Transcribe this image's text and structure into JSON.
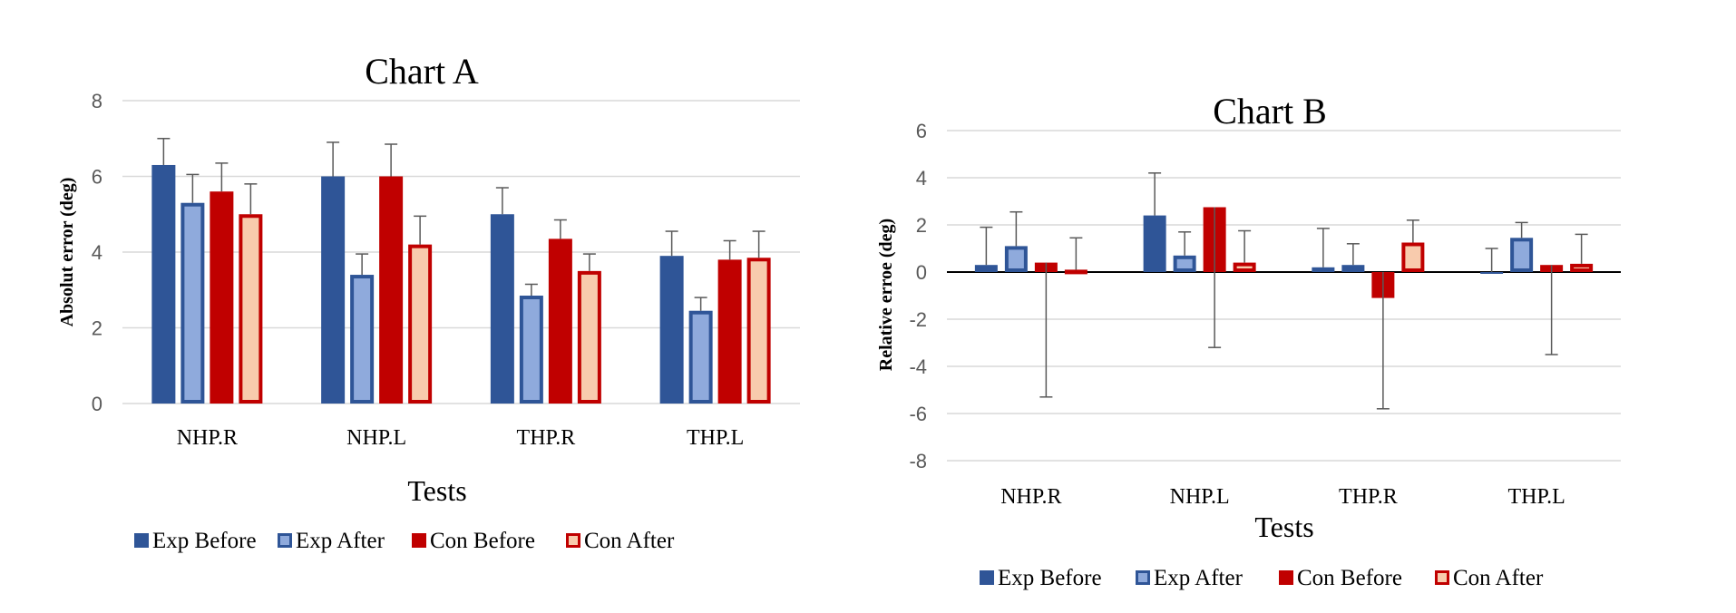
{
  "chart_data": [
    {
      "type": "bar",
      "title": "Chart A",
      "xlabel": "Tests",
      "ylabel": "Absolut error (deg)",
      "ylim": [
        0,
        8
      ],
      "yticks": [
        0,
        2,
        4,
        6,
        8
      ],
      "grid": true,
      "legend_position": "bottom",
      "categories": [
        "NHP.R",
        "NHP.L",
        "THP.R",
        "THP.L"
      ],
      "series": [
        {
          "name": "Exp Before",
          "values": [
            6.3,
            6.0,
            5.0,
            3.9
          ],
          "error_upper": [
            0.7,
            0.9,
            0.7,
            0.65
          ]
        },
        {
          "name": "Exp After",
          "values": [
            5.3,
            3.4,
            2.85,
            2.45
          ],
          "error_upper": [
            0.75,
            0.55,
            0.3,
            0.35
          ]
        },
        {
          "name": "Con Before",
          "values": [
            5.6,
            6.0,
            4.35,
            3.8
          ],
          "error_upper": [
            0.75,
            0.85,
            0.5,
            0.5
          ]
        },
        {
          "name": "Con After",
          "values": [
            5.0,
            4.2,
            3.5,
            3.85
          ],
          "error_upper": [
            0.8,
            0.75,
            0.45,
            0.7
          ]
        }
      ]
    },
    {
      "type": "bar",
      "title": "Chart B",
      "xlabel": "Tests",
      "ylabel": "Relative erroe (deg)",
      "ylim": [
        -8,
        6
      ],
      "yticks": [
        -8,
        -6,
        -4,
        -2,
        0,
        2,
        4,
        6
      ],
      "grid": true,
      "legend_position": "bottom",
      "categories": [
        "NHP.R",
        "NHP.L",
        "THP.R",
        "THP.L"
      ],
      "series": [
        {
          "name": "Exp Before",
          "values": [
            0.3,
            2.4,
            0.2,
            0.0
          ],
          "error_upper": [
            1.6,
            1.8,
            1.65,
            1.0
          ],
          "error_lower": [
            0,
            0,
            0,
            0
          ]
        },
        {
          "name": "Exp After",
          "values": [
            1.1,
            0.7,
            0.3,
            1.45
          ],
          "error_upper": [
            1.45,
            1.0,
            0.9,
            0.65
          ],
          "error_lower": [
            0,
            0,
            0,
            0
          ]
        },
        {
          "name": "Con Before",
          "values": [
            0.4,
            2.75,
            -1.1,
            0.3
          ],
          "error_upper": [
            0,
            0,
            0,
            0
          ],
          "error_lower": [
            5.7,
            5.95,
            4.7,
            3.8
          ]
        },
        {
          "name": "Con After",
          "values": [
            0.1,
            0.4,
            1.25,
            0.35
          ],
          "error_upper": [
            1.35,
            1.35,
            0.95,
            1.25
          ],
          "error_lower": [
            0,
            0,
            0,
            0
          ]
        }
      ]
    }
  ],
  "series_styles": [
    {
      "fill": "#2F5597",
      "stroke": "#2F5597"
    },
    {
      "fill": "#8FAADC",
      "stroke": "#2F5597"
    },
    {
      "fill": "#C00000",
      "stroke": "#C00000"
    },
    {
      "fill": "#F8CBAD",
      "stroke": "#C00000"
    }
  ]
}
